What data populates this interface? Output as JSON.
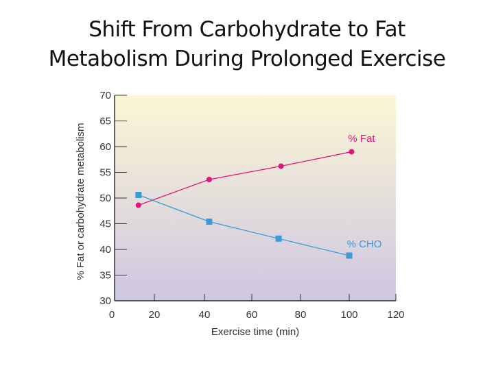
{
  "slide": {
    "title_line1": "Shift From Carbohydrate to Fat",
    "title_line2": "Metabolism During Prolonged Exercise"
  },
  "chart_data": {
    "type": "line",
    "title": "",
    "xlabel": "Exercise time (min)",
    "ylabel": "% Fat or carbohydrate metabolism",
    "xlim": [
      0,
      120
    ],
    "ylim": [
      30,
      70
    ],
    "xticks": [
      0,
      20,
      40,
      60,
      80,
      100,
      120
    ],
    "yticks": [
      30,
      35,
      40,
      45,
      50,
      55,
      60,
      65,
      70
    ],
    "grid": false,
    "background_gradient": [
      "#fbf7d4",
      "#cfc6e2"
    ],
    "series": [
      {
        "name": "% Fat",
        "color": "#e0157e",
        "marker": "circle",
        "x": [
          12,
          42,
          72,
          101
        ],
        "y": [
          48.6,
          53.6,
          56.2,
          59.0
        ]
      },
      {
        "name": "% CHO",
        "color": "#3b9bd6",
        "marker": "square",
        "x": [
          12,
          42,
          71,
          100
        ],
        "y": [
          50.6,
          45.4,
          42.1,
          38.8
        ]
      }
    ]
  }
}
